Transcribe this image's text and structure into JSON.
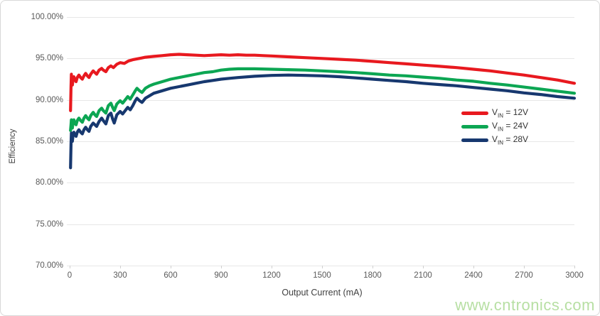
{
  "figure": {
    "watermark": "www.cntronics.com"
  },
  "colors": {
    "series_red": "#e8191f",
    "series_green": "#0ca653",
    "series_navy": "#17386f",
    "gridline": "#e7e7e7",
    "tick_label": "#595959",
    "axis_title": "#404040",
    "watermark": "#b7dfa3",
    "frame_border": "#d8d8d8"
  },
  "chart_data": {
    "type": "line",
    "title": "",
    "xlabel": "Output Current (mA)",
    "ylabel": "Efficiency",
    "xlim": [
      0,
      3000
    ],
    "ylim": [
      70,
      100
    ],
    "grid": "horizontal",
    "legend_position": "center-right",
    "x_ticks": [
      {
        "value": 0,
        "label": "0"
      },
      {
        "value": 300,
        "label": "300"
      },
      {
        "value": 600,
        "label": "600"
      },
      {
        "value": 900,
        "label": "900"
      },
      {
        "value": 1200,
        "label": "1200"
      },
      {
        "value": 1500,
        "label": "1500"
      },
      {
        "value": 1800,
        "label": "1800"
      },
      {
        "value": 2100,
        "label": "2100"
      },
      {
        "value": 2400,
        "label": "2400"
      },
      {
        "value": 2700,
        "label": "2700"
      },
      {
        "value": 3000,
        "label": "3000"
      }
    ],
    "y_ticks": [
      {
        "value": 100,
        "label": "100.00%"
      },
      {
        "value": 95,
        "label": "95.00%"
      },
      {
        "value": 90,
        "label": "90.00%"
      },
      {
        "value": 85,
        "label": "85.00%"
      },
      {
        "value": 80,
        "label": "80.00%"
      },
      {
        "value": 75,
        "label": "75.00%"
      },
      {
        "value": 70,
        "label": "70.00%"
      }
    ],
    "series": [
      {
        "name": "VIN = 12V",
        "label_parts": {
          "symbol": "V",
          "subscript": "IN",
          "suffix": " = 12V"
        },
        "color": "#e8191f",
        "points": [
          [
            5,
            88.7
          ],
          [
            8,
            91.6
          ],
          [
            10,
            93.1
          ],
          [
            13,
            92.3
          ],
          [
            16,
            91.8
          ],
          [
            20,
            92.4
          ],
          [
            25,
            92.8
          ],
          [
            30,
            92.5
          ],
          [
            38,
            92.2
          ],
          [
            45,
            92.7
          ],
          [
            55,
            93.0
          ],
          [
            65,
            92.7
          ],
          [
            75,
            92.5
          ],
          [
            85,
            92.9
          ],
          [
            95,
            93.2
          ],
          [
            105,
            92.9
          ],
          [
            115,
            92.7
          ],
          [
            125,
            93.1
          ],
          [
            140,
            93.5
          ],
          [
            150,
            93.3
          ],
          [
            160,
            93.1
          ],
          [
            175,
            93.6
          ],
          [
            190,
            93.8
          ],
          [
            200,
            93.6
          ],
          [
            215,
            93.4
          ],
          [
            230,
            93.9
          ],
          [
            245,
            94.1
          ],
          [
            260,
            93.9
          ],
          [
            280,
            94.3
          ],
          [
            300,
            94.5
          ],
          [
            325,
            94.4
          ],
          [
            350,
            94.7
          ],
          [
            375,
            94.85
          ],
          [
            400,
            94.95
          ],
          [
            425,
            95.05
          ],
          [
            450,
            95.15
          ],
          [
            475,
            95.2
          ],
          [
            500,
            95.25
          ],
          [
            550,
            95.35
          ],
          [
            600,
            95.45
          ],
          [
            650,
            95.5
          ],
          [
            700,
            95.45
          ],
          [
            750,
            95.4
          ],
          [
            800,
            95.35
          ],
          [
            850,
            95.4
          ],
          [
            900,
            95.45
          ],
          [
            950,
            95.4
          ],
          [
            1000,
            95.45
          ],
          [
            1050,
            95.4
          ],
          [
            1100,
            95.4
          ],
          [
            1150,
            95.35
          ],
          [
            1200,
            95.3
          ],
          [
            1300,
            95.2
          ],
          [
            1400,
            95.1
          ],
          [
            1500,
            95.0
          ],
          [
            1600,
            94.9
          ],
          [
            1700,
            94.8
          ],
          [
            1800,
            94.65
          ],
          [
            1900,
            94.5
          ],
          [
            2000,
            94.35
          ],
          [
            2100,
            94.2
          ],
          [
            2200,
            94.05
          ],
          [
            2300,
            93.9
          ],
          [
            2400,
            93.7
          ],
          [
            2500,
            93.5
          ],
          [
            2600,
            93.25
          ],
          [
            2700,
            93.0
          ],
          [
            2800,
            92.7
          ],
          [
            2900,
            92.4
          ],
          [
            3000,
            92.0
          ]
        ]
      },
      {
        "name": "VIN = 24V",
        "label_parts": {
          "symbol": "V",
          "subscript": "IN",
          "suffix": " = 24V"
        },
        "color": "#0ca653",
        "points": [
          [
            5,
            86.3
          ],
          [
            8,
            87.0
          ],
          [
            10,
            87.6
          ],
          [
            13,
            86.9
          ],
          [
            16,
            86.6
          ],
          [
            20,
            87.2
          ],
          [
            25,
            87.6
          ],
          [
            30,
            87.2
          ],
          [
            38,
            87.0
          ],
          [
            45,
            87.5
          ],
          [
            55,
            87.8
          ],
          [
            65,
            87.5
          ],
          [
            75,
            87.3
          ],
          [
            85,
            87.8
          ],
          [
            95,
            88.1
          ],
          [
            105,
            87.8
          ],
          [
            115,
            87.6
          ],
          [
            125,
            88.1
          ],
          [
            140,
            88.5
          ],
          [
            150,
            88.2
          ],
          [
            160,
            88.0
          ],
          [
            175,
            88.7
          ],
          [
            190,
            89.0
          ],
          [
            200,
            88.7
          ],
          [
            215,
            88.4
          ],
          [
            230,
            89.3
          ],
          [
            245,
            89.6
          ],
          [
            255,
            89.1
          ],
          [
            265,
            88.7
          ],
          [
            280,
            89.5
          ],
          [
            300,
            89.9
          ],
          [
            315,
            89.6
          ],
          [
            330,
            90.0
          ],
          [
            345,
            90.4
          ],
          [
            360,
            90.1
          ],
          [
            375,
            90.6
          ],
          [
            390,
            91.1
          ],
          [
            400,
            91.4
          ],
          [
            415,
            91.1
          ],
          [
            430,
            90.9
          ],
          [
            450,
            91.4
          ],
          [
            475,
            91.7
          ],
          [
            500,
            91.9
          ],
          [
            550,
            92.2
          ],
          [
            600,
            92.5
          ],
          [
            650,
            92.7
          ],
          [
            700,
            92.9
          ],
          [
            750,
            93.1
          ],
          [
            800,
            93.3
          ],
          [
            850,
            93.4
          ],
          [
            900,
            93.6
          ],
          [
            950,
            93.7
          ],
          [
            1000,
            93.75
          ],
          [
            1100,
            93.75
          ],
          [
            1200,
            93.7
          ],
          [
            1300,
            93.65
          ],
          [
            1400,
            93.6
          ],
          [
            1500,
            93.5
          ],
          [
            1600,
            93.4
          ],
          [
            1700,
            93.3
          ],
          [
            1800,
            93.15
          ],
          [
            1900,
            93.0
          ],
          [
            2000,
            92.9
          ],
          [
            2100,
            92.75
          ],
          [
            2200,
            92.6
          ],
          [
            2300,
            92.4
          ],
          [
            2400,
            92.25
          ],
          [
            2500,
            92.0
          ],
          [
            2600,
            91.8
          ],
          [
            2700,
            91.55
          ],
          [
            2800,
            91.3
          ],
          [
            2900,
            91.05
          ],
          [
            3000,
            90.8
          ]
        ]
      },
      {
        "name": "VIN = 28V",
        "label_parts": {
          "symbol": "V",
          "subscript": "IN",
          "suffix": " = 28V"
        },
        "color": "#17386f",
        "points": [
          [
            5,
            81.8
          ],
          [
            8,
            84.6
          ],
          [
            10,
            86.0
          ],
          [
            13,
            85.3
          ],
          [
            16,
            85.0
          ],
          [
            20,
            85.7
          ],
          [
            25,
            86.1
          ],
          [
            30,
            85.8
          ],
          [
            38,
            85.6
          ],
          [
            45,
            86.1
          ],
          [
            55,
            86.4
          ],
          [
            65,
            86.1
          ],
          [
            75,
            85.9
          ],
          [
            85,
            86.4
          ],
          [
            95,
            86.7
          ],
          [
            105,
            86.4
          ],
          [
            115,
            86.2
          ],
          [
            125,
            86.8
          ],
          [
            140,
            87.2
          ],
          [
            150,
            87.0
          ],
          [
            160,
            86.8
          ],
          [
            175,
            87.4
          ],
          [
            190,
            87.8
          ],
          [
            200,
            87.5
          ],
          [
            215,
            87.1
          ],
          [
            230,
            88.1
          ],
          [
            245,
            88.4
          ],
          [
            255,
            87.7
          ],
          [
            265,
            87.2
          ],
          [
            280,
            88.2
          ],
          [
            300,
            88.6
          ],
          [
            315,
            88.3
          ],
          [
            330,
            88.7
          ],
          [
            345,
            89.1
          ],
          [
            360,
            88.8
          ],
          [
            375,
            89.3
          ],
          [
            390,
            89.9
          ],
          [
            400,
            90.2
          ],
          [
            415,
            89.9
          ],
          [
            430,
            89.7
          ],
          [
            450,
            90.2
          ],
          [
            475,
            90.5
          ],
          [
            500,
            90.8
          ],
          [
            550,
            91.1
          ],
          [
            600,
            91.4
          ],
          [
            650,
            91.6
          ],
          [
            700,
            91.8
          ],
          [
            750,
            92.0
          ],
          [
            800,
            92.2
          ],
          [
            850,
            92.35
          ],
          [
            900,
            92.5
          ],
          [
            950,
            92.6
          ],
          [
            1000,
            92.7
          ],
          [
            1100,
            92.85
          ],
          [
            1200,
            92.95
          ],
          [
            1300,
            93.0
          ],
          [
            1400,
            92.95
          ],
          [
            1500,
            92.9
          ],
          [
            1600,
            92.8
          ],
          [
            1700,
            92.65
          ],
          [
            1800,
            92.5
          ],
          [
            1900,
            92.35
          ],
          [
            2000,
            92.2
          ],
          [
            2100,
            92.0
          ],
          [
            2200,
            91.85
          ],
          [
            2300,
            91.7
          ],
          [
            2400,
            91.5
          ],
          [
            2500,
            91.3
          ],
          [
            2600,
            91.1
          ],
          [
            2700,
            90.85
          ],
          [
            2800,
            90.65
          ],
          [
            2900,
            90.4
          ],
          [
            3000,
            90.2
          ]
        ]
      }
    ]
  }
}
